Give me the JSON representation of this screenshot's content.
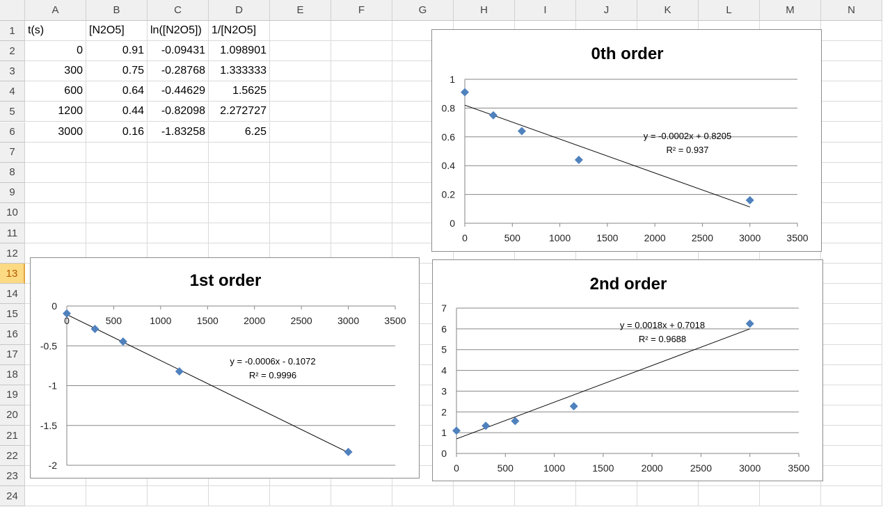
{
  "columns": [
    "A",
    "B",
    "C",
    "D",
    "E",
    "F",
    "G",
    "H",
    "I",
    "J",
    "K",
    "L",
    "M",
    "N"
  ],
  "rows": [
    "1",
    "2",
    "3",
    "4",
    "5",
    "6",
    "7",
    "8",
    "9",
    "10",
    "11",
    "12",
    "13",
    "14",
    "15",
    "16",
    "17",
    "18",
    "19",
    "20",
    "21",
    "22",
    "23",
    "24"
  ],
  "selected_row": "13",
  "cells": [
    [
      "t(s)",
      "[N2O5]",
      "ln([N2O5])",
      "1/[N2O5]"
    ],
    [
      "0",
      "0.91",
      "-0.09431",
      "1.098901"
    ],
    [
      "300",
      "0.75",
      "-0.28768",
      "1.333333"
    ],
    [
      "600",
      "0.64",
      "-0.44629",
      "1.5625"
    ],
    [
      "1200",
      "0.44",
      "-0.82098",
      "2.272727"
    ],
    [
      "3000",
      "0.16",
      "-1.83258",
      "6.25"
    ]
  ],
  "marker_color": "#4f81bd",
  "chart_data": [
    {
      "type": "scatter",
      "title": "0th order",
      "x": [
        0,
        300,
        600,
        1200,
        3000
      ],
      "y": [
        0.91,
        0.75,
        0.64,
        0.44,
        0.16
      ],
      "xlim": [
        0,
        3500
      ],
      "ylim": [
        0,
        1
      ],
      "xticks": [
        "0",
        "500",
        "1000",
        "1500",
        "2000",
        "2500",
        "3000",
        "3500"
      ],
      "yticks": [
        "0",
        "0.2",
        "0.4",
        "0.6",
        "0.8",
        "1"
      ],
      "grid": true,
      "trendline": "linear",
      "equation": "y = -0.0002x + 0.8205",
      "r2": "R² = 0.937"
    },
    {
      "type": "scatter",
      "title": "1st order",
      "x": [
        0,
        300,
        600,
        1200,
        3000
      ],
      "y": [
        -0.09431,
        -0.28768,
        -0.44629,
        -0.82098,
        -1.83258
      ],
      "xlim": [
        0,
        3500
      ],
      "ylim": [
        -2,
        0
      ],
      "xticks": [
        "0",
        "500",
        "1000",
        "1500",
        "2000",
        "2500",
        "3000",
        "3500"
      ],
      "yticks": [
        "-2",
        "-1.5",
        "-1",
        "-0.5",
        "0"
      ],
      "grid": true,
      "trendline": "linear",
      "equation": "y = -0.0006x - 0.1072",
      "r2": "R² = 0.9996"
    },
    {
      "type": "scatter",
      "title": "2nd order",
      "x": [
        0,
        300,
        600,
        1200,
        3000
      ],
      "y": [
        1.098901,
        1.333333,
        1.5625,
        2.272727,
        6.25
      ],
      "xlim": [
        0,
        3500
      ],
      "ylim": [
        0,
        7
      ],
      "xticks": [
        "0",
        "500",
        "1000",
        "1500",
        "2000",
        "2500",
        "3000",
        "3500"
      ],
      "yticks": [
        "0",
        "1",
        "2",
        "3",
        "4",
        "5",
        "6",
        "7"
      ],
      "grid": true,
      "trendline": "linear",
      "equation": "y = 0.0018x + 0.7018",
      "r2": "R² = 0.9688"
    }
  ]
}
